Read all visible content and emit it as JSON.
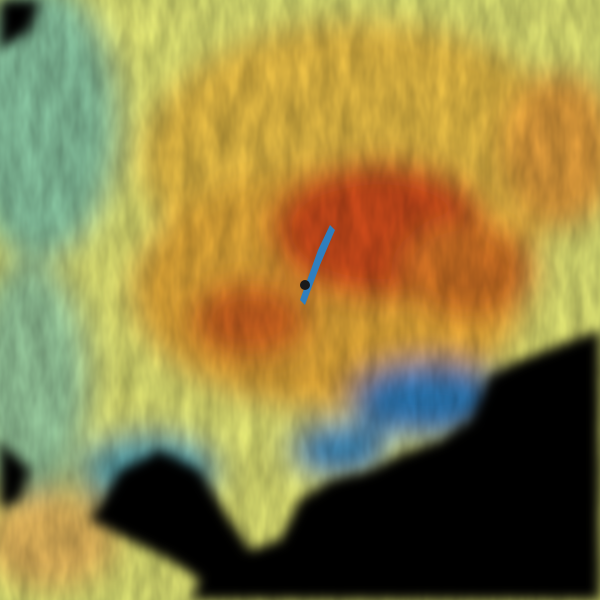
{
  "palette": {
    "no_data": "#000000",
    "low": "#2f7fbf",
    "low_mid": "#7fc4b0",
    "mid": "#eef27a",
    "high_mid": "#f2b43a",
    "high": "#d9501a",
    "peak": "#c2300f"
  }
}
